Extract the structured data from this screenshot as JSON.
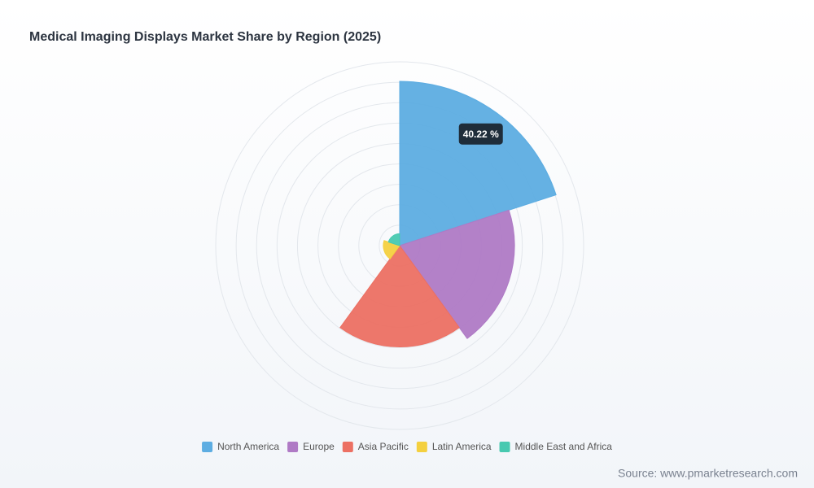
{
  "chart_data": {
    "type": "rose",
    "title": "Medical Imaging Displays Market Share by Region (2025)",
    "categories": [
      "North America",
      "Europe",
      "Asia Pacific",
      "Latin America",
      "Middle East and Africa"
    ],
    "values": [
      40.22,
      28.1,
      24.8,
      4.0,
      2.9
    ],
    "value_labels": [
      "40.22 %",
      null,
      null,
      null,
      null
    ],
    "colors": [
      "#5dade2",
      "#af7ac5",
      "#ec7063",
      "#f4d03f",
      "#48c9b0"
    ],
    "rlim": [
      0,
      45
    ],
    "rticks": [
      5,
      10,
      15,
      20,
      25,
      30,
      35,
      40,
      45
    ],
    "grid": true,
    "legend": "bottom",
    "source": "Source: www.pmarketresearch.com"
  }
}
